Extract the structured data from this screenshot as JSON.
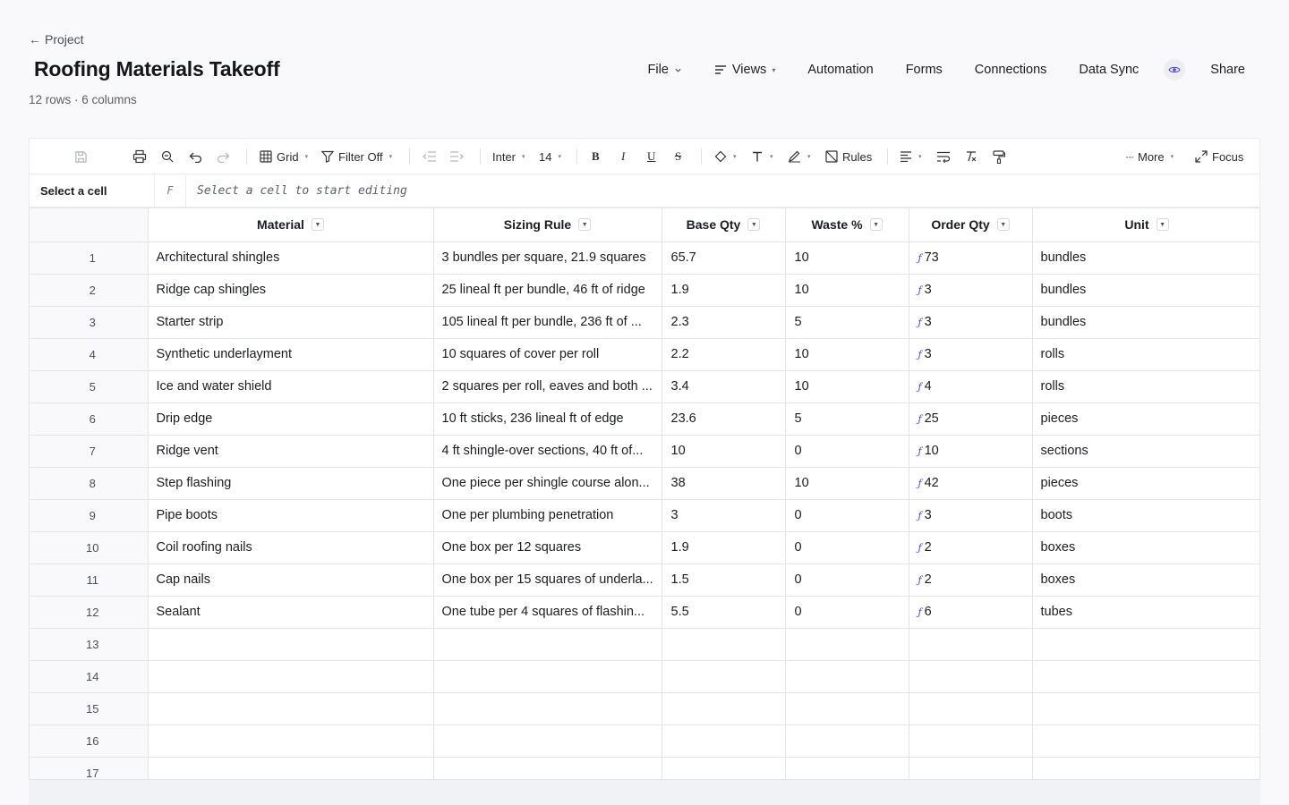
{
  "back_link": "Project",
  "title": "Roofing Materials Takeoff",
  "subtitle": "12 rows · 6 columns",
  "nav": {
    "file": "File",
    "views": "Views",
    "automation": "Automation",
    "forms": "Forms",
    "connections": "Connections",
    "data_sync": "Data Sync",
    "share": "Share"
  },
  "toolbar": {
    "view": "Grid",
    "filter": "Filter Off",
    "font": "Inter",
    "font_size": "14",
    "bold": "B",
    "italic": "I",
    "underline": "U",
    "strike": "S",
    "rules": "Rules",
    "more": "More",
    "focus": "Focus"
  },
  "formula_bar": {
    "cell_ref": "Select a cell",
    "fx_label": "F",
    "placeholder": "Select a cell to start editing"
  },
  "columns": [
    "Material",
    "Sizing Rule",
    "Base Qty",
    "Waste %",
    "Order Qty",
    "Unit"
  ],
  "rows": [
    {
      "n": "1",
      "material": "Architectural shingles",
      "rule": "3 bundles per square, 21.9 squares",
      "base": "65.7",
      "waste": "10",
      "order": "73",
      "unit": "bundles"
    },
    {
      "n": "2",
      "material": "Ridge cap shingles",
      "rule": "25 lineal ft per bundle, 46 ft of ridge",
      "base": "1.9",
      "waste": "10",
      "order": "3",
      "unit": "bundles"
    },
    {
      "n": "3",
      "material": "Starter strip",
      "rule": "105 lineal ft per bundle, 236 ft of ...",
      "base": "2.3",
      "waste": "5",
      "order": "3",
      "unit": "bundles"
    },
    {
      "n": "4",
      "material": "Synthetic underlayment",
      "rule": "10 squares of cover per roll",
      "base": "2.2",
      "waste": "10",
      "order": "3",
      "unit": "rolls"
    },
    {
      "n": "5",
      "material": "Ice and water shield",
      "rule": "2 squares per roll, eaves and both ...",
      "base": "3.4",
      "waste": "10",
      "order": "4",
      "unit": "rolls"
    },
    {
      "n": "6",
      "material": "Drip edge",
      "rule": "10 ft sticks, 236 lineal ft of edge",
      "base": "23.6",
      "waste": "5",
      "order": "25",
      "unit": "pieces"
    },
    {
      "n": "7",
      "material": "Ridge vent",
      "rule": "4 ft shingle-over sections, 40 ft of...",
      "base": "10",
      "waste": "0",
      "order": "10",
      "unit": "sections"
    },
    {
      "n": "8",
      "material": "Step flashing",
      "rule": "One piece per shingle course alon...",
      "base": "38",
      "waste": "10",
      "order": "42",
      "unit": "pieces"
    },
    {
      "n": "9",
      "material": "Pipe boots",
      "rule": "One per plumbing penetration",
      "base": "3",
      "waste": "0",
      "order": "3",
      "unit": "boots"
    },
    {
      "n": "10",
      "material": "Coil roofing nails",
      "rule": "One box per 12 squares",
      "base": "1.9",
      "waste": "0",
      "order": "2",
      "unit": "boxes"
    },
    {
      "n": "11",
      "material": "Cap nails",
      "rule": "One box per 15 squares of underla...",
      "base": "1.5",
      "waste": "0",
      "order": "2",
      "unit": "boxes"
    },
    {
      "n": "12",
      "material": "Sealant",
      "rule": "One tube per 4 squares of flashin...",
      "base": "5.5",
      "waste": "0",
      "order": "6",
      "unit": "tubes"
    }
  ],
  "empty_rows": [
    "13",
    "14",
    "15",
    "16",
    "17"
  ]
}
